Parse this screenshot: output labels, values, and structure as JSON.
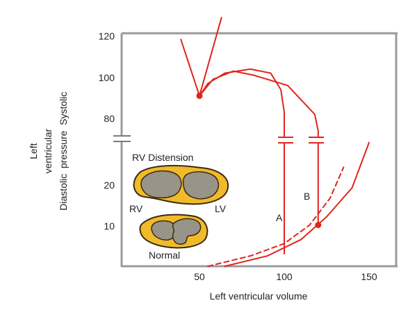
{
  "chart_data": {
    "type": "line",
    "title": "",
    "xlabel": "Left ventricular volume",
    "ylabel_lines": [
      "Left",
      "ventricular",
      "Diastolic  pressure  Systolic"
    ],
    "x_ticks": [
      "50",
      "100",
      "150"
    ],
    "y_ticks_systolic": [
      "120",
      "100",
      "80"
    ],
    "y_ticks_diastolic": [
      "20",
      "10"
    ],
    "xlim": [
      10,
      165
    ],
    "ylim_diastolic": [
      0,
      27
    ],
    "ylim_systolic": [
      70,
      120
    ],
    "axis_break": true,
    "series": [
      {
        "key": "end-systolic",
        "style": "solid",
        "points": [
          [
            39,
            55
          ],
          [
            50,
            92
          ],
          [
            63,
            130
          ]
        ]
      },
      {
        "key": "loop-a",
        "style": "solid",
        "points": [
          [
            50,
            92
          ],
          [
            55,
            98
          ],
          [
            65,
            103
          ],
          [
            80,
            105
          ],
          [
            92,
            103
          ],
          [
            98,
            95
          ],
          [
            100,
            84
          ],
          [
            100,
            75
          ],
          [
            100,
            3
          ]
        ]
      },
      {
        "key": "loop-b",
        "style": "solid",
        "points": [
          [
            50,
            92
          ],
          [
            58,
            100
          ],
          [
            70,
            104
          ],
          [
            82,
            102
          ],
          [
            102,
            97
          ],
          [
            118,
            83
          ],
          [
            120,
            75
          ],
          [
            120,
            10
          ]
        ]
      },
      {
        "key": "diastolic-normal",
        "style": "dashed",
        "points": [
          [
            55,
            0
          ],
          [
            80,
            2.5
          ],
          [
            100,
            5.5
          ],
          [
            115,
            10
          ],
          [
            127,
            16.5
          ],
          [
            135,
            24
          ]
        ]
      },
      {
        "key": "diastolic-rv-distension",
        "style": "solid",
        "points": [
          [
            65,
            0
          ],
          [
            90,
            2.5
          ],
          [
            110,
            6.5
          ],
          [
            125,
            12
          ],
          [
            140,
            19
          ],
          [
            150,
            30
          ]
        ]
      }
    ],
    "markers": [
      {
        "x": 50,
        "y": 92
      },
      {
        "x": 120,
        "y": 10
      }
    ],
    "annotations": [
      {
        "key": "A",
        "text": "A"
      },
      {
        "key": "B",
        "text": "B"
      }
    ]
  },
  "inset": {
    "top_label": "RV Distension",
    "left_label": "RV",
    "right_label": "LV",
    "bottom_label": "Normal"
  },
  "colors": {
    "line": "#e2231a",
    "heart_fill": "#f0ba2a",
    "heart_stroke": "#3a2a10",
    "cavity_fill": "#9b978c",
    "axis": "#999999"
  }
}
